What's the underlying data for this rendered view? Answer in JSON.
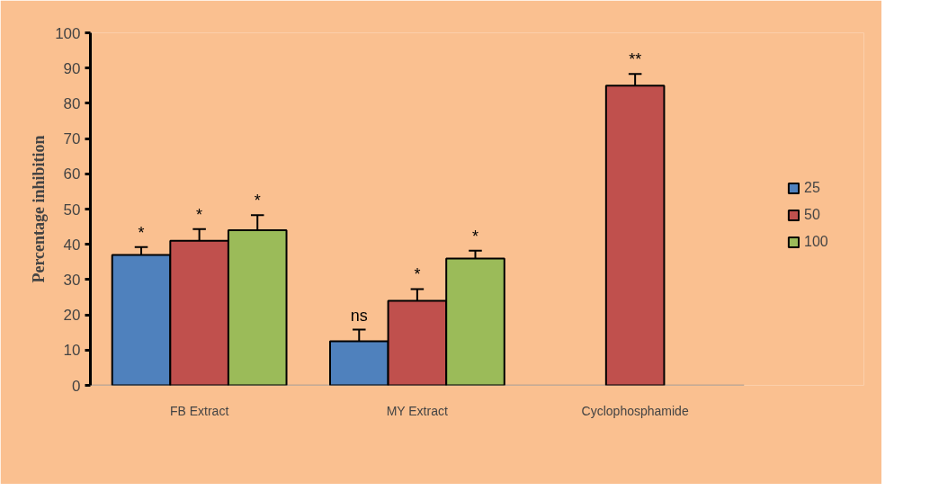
{
  "chart_data": {
    "type": "bar",
    "ylabel": "Percentage inhibition",
    "categories": [
      "FB Extract",
      "MY Extract",
      "Cyclophosphamide"
    ],
    "series": [
      {
        "name": "25",
        "color": "#4f81bd",
        "values": [
          37,
          12.5,
          null
        ],
        "errors": [
          2.2,
          3.3,
          null
        ],
        "value_labels": [
          "*",
          "ns",
          null
        ]
      },
      {
        "name": "50",
        "color": "#c0504d",
        "values": [
          41,
          24,
          85
        ],
        "errors": [
          3.3,
          3.3,
          3.3
        ],
        "value_labels": [
          "*",
          "*",
          "**"
        ]
      },
      {
        "name": "100",
        "color": "#9bbb59",
        "values": [
          44,
          36,
          null
        ],
        "errors": [
          4.3,
          2.2,
          null
        ],
        "value_labels": [
          "*",
          "*",
          null
        ]
      }
    ],
    "ylim": [
      0,
      100
    ],
    "yticks": [
      0,
      10,
      20,
      30,
      40,
      50,
      60,
      70,
      80,
      90,
      100
    ],
    "grid": false,
    "legend": "right"
  }
}
